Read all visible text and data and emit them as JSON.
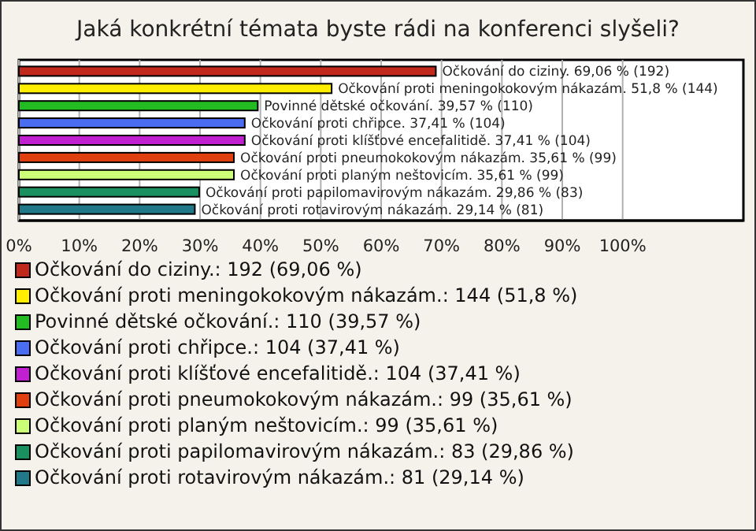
{
  "chart_data": {
    "type": "bar",
    "orientation": "horizontal",
    "stacked": true,
    "title": "Jaká konkrétní témata byste rádi na konferenci slyšeli?",
    "categories": [
      null,
      null,
      null,
      null,
      null,
      null,
      null,
      null,
      null
    ],
    "series": [
      {
        "name": "Očkování do ciziny.: 192 (69,06 %)",
        "color": "#c0281c",
        "values": [
          69.06,
          null,
          null,
          null,
          null,
          null,
          null,
          null,
          null
        ],
        "value_labels": [
          "Očkování do ciziny. 69,06 % (192)",
          null,
          null,
          null,
          null,
          null,
          null,
          null,
          null
        ]
      },
      {
        "name": "Očkování proti meningokokovým nákazám.: 144 (51,8 %)",
        "color": "#ffee00",
        "values": [
          null,
          51.8,
          null,
          null,
          null,
          null,
          null,
          null,
          null
        ],
        "value_labels": [
          null,
          "Očkování proti meningokokovým nákazám. 51,8 % (144)",
          null,
          null,
          null,
          null,
          null,
          null,
          null
        ]
      },
      {
        "name": "Povinné dětské očkování.: 110 (39,57 %)",
        "color": "#22bb22",
        "values": [
          null,
          null,
          39.57,
          null,
          null,
          null,
          null,
          null,
          null
        ],
        "value_labels": [
          null,
          null,
          "Povinné dětské očkování. 39,57 % (110)",
          null,
          null,
          null,
          null,
          null,
          null
        ]
      },
      {
        "name": "Očkování proti chřipce.: 104 (37,41 %)",
        "color": "#4a6cf0",
        "values": [
          null,
          null,
          null,
          37.41,
          null,
          null,
          null,
          null,
          null
        ],
        "value_labels": [
          null,
          null,
          null,
          "Očkování proti chřipce. 37,41 % (104)",
          null,
          null,
          null,
          null,
          null
        ]
      },
      {
        "name": "Očkování proti klíšťové encefalitidě.: 104 (37,41 %)",
        "color": "#c020d0",
        "values": [
          null,
          null,
          null,
          null,
          37.41,
          null,
          null,
          null,
          null
        ],
        "value_labels": [
          null,
          null,
          null,
          null,
          "Očkování proti klíšťové encefalitidě. 37,41 % (104)",
          null,
          null,
          null,
          null
        ]
      },
      {
        "name": "Očkování proti pneumokokovým nákazám.: 99 (35,61 %)",
        "color": "#e04010",
        "values": [
          null,
          null,
          null,
          null,
          null,
          35.61,
          null,
          null,
          null
        ],
        "value_labels": [
          null,
          null,
          null,
          null,
          null,
          "Očkování proti pneumokokovým nákazám. 35,61 % (99)",
          null,
          null,
          null
        ]
      },
      {
        "name": "Očkování proti planým neštovicím.: 99 (35,61 %)",
        "color": "#ccff77",
        "values": [
          null,
          null,
          null,
          null,
          null,
          null,
          35.61,
          null,
          null
        ],
        "value_labels": [
          null,
          null,
          null,
          null,
          null,
          null,
          "Očkování proti planým neštovicím. 35,61 % (99)",
          null,
          null
        ]
      },
      {
        "name": "Očkování proti papilomavirovým nákazám.: 83 (29,86 %)",
        "color": "#1a9060",
        "values": [
          null,
          null,
          null,
          null,
          null,
          null,
          null,
          29.86,
          null
        ],
        "value_labels": [
          null,
          null,
          null,
          null,
          null,
          null,
          null,
          "Očkování proti papilomavirovým nákazám. 29,86 % (83)",
          null
        ]
      },
      {
        "name": "Očkování proti rotavirovým nákazám.: 81 (29,14 %)",
        "color": "#207888",
        "values": [
          null,
          null,
          null,
          null,
          null,
          null,
          null,
          null,
          29.14
        ],
        "value_labels": [
          null,
          null,
          null,
          null,
          null,
          null,
          null,
          null,
          "Očkování proti rotavirovým nákazám. 29,14 % (81)"
        ]
      }
    ],
    "xlim": [
      0,
      120
    ],
    "xticks": [
      {
        "value": 0,
        "label": "0%"
      },
      {
        "value": 10,
        "label": "10%"
      },
      {
        "value": 20,
        "label": "20%"
      },
      {
        "value": 30,
        "label": "30%"
      },
      {
        "value": 40,
        "label": "40%"
      },
      {
        "value": 50,
        "label": "50%"
      },
      {
        "value": 60,
        "label": "60%"
      },
      {
        "value": 70,
        "label": "70%"
      },
      {
        "value": 80,
        "label": "80%"
      },
      {
        "value": 90,
        "label": "90%"
      },
      {
        "value": 100,
        "label": "100%"
      }
    ],
    "grid": "x",
    "legend": "bottom",
    "tick_labels": "x"
  }
}
